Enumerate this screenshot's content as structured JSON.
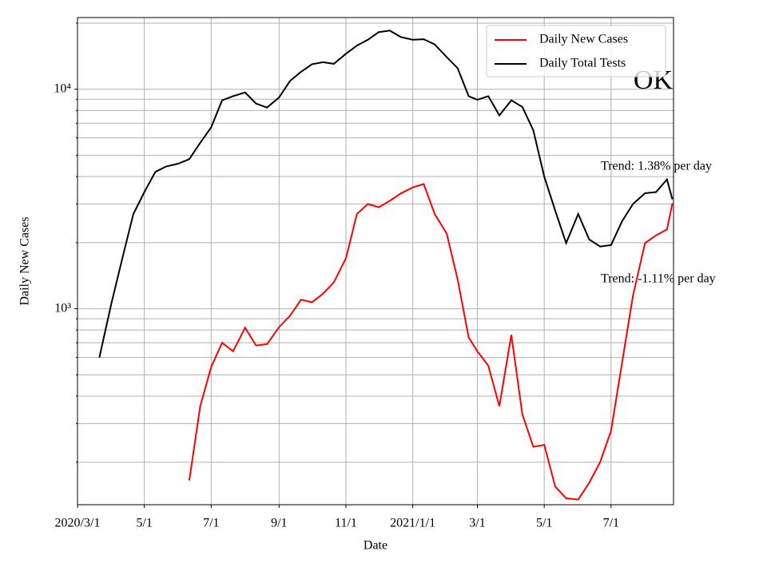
{
  "chart_data": {
    "type": "line",
    "xlabel": "Date",
    "ylabel": "Daily New Cases",
    "x": [
      "2020-03-01",
      "2020-03-11",
      "2020-03-21",
      "2020-04-01",
      "2020-04-11",
      "2020-04-21",
      "2020-05-01",
      "2020-05-11",
      "2020-05-21",
      "2020-06-01",
      "2020-06-11",
      "2020-06-21",
      "2020-07-01",
      "2020-07-11",
      "2020-07-21",
      "2020-08-01",
      "2020-08-11",
      "2020-08-21",
      "2020-09-01",
      "2020-09-11",
      "2020-09-21",
      "2020-10-01",
      "2020-10-11",
      "2020-10-21",
      "2020-11-01",
      "2020-11-11",
      "2020-11-21",
      "2020-12-01",
      "2020-12-11",
      "2020-12-21",
      "2021-01-01",
      "2021-01-11",
      "2021-01-21",
      "2021-02-01",
      "2021-02-11",
      "2021-02-21",
      "2021-03-01",
      "2021-03-11",
      "2021-03-21",
      "2021-04-01",
      "2021-04-11",
      "2021-04-21",
      "2021-05-01",
      "2021-05-11",
      "2021-05-21",
      "2021-06-01",
      "2021-06-11",
      "2021-06-21",
      "2021-07-01",
      "2021-07-11",
      "2021-07-21",
      "2021-08-01",
      "2021-08-11",
      "2021-08-21",
      "2021-08-26"
    ],
    "series": [
      {
        "name": "Daily New Cases",
        "color": "#ff0000",
        "values": [
          null,
          null,
          null,
          null,
          null,
          null,
          null,
          null,
          null,
          null,
          165,
          360,
          543,
          700,
          640,
          820,
          680,
          690,
          825,
          930,
          1100,
          1070,
          1170,
          1320,
          1700,
          2700,
          3000,
          2900,
          3100,
          3350,
          3570,
          3700,
          2700,
          2200,
          1360,
          740,
          640,
          550,
          360,
          760,
          330,
          235,
          240,
          155,
          137,
          135,
          161,
          200,
          278,
          565,
          1150,
          1990,
          2160,
          2300,
          3020
        ]
      },
      {
        "name": "Daily Total Tests",
        "color": "#000000",
        "values": [
          null,
          null,
          600,
          1060,
          1700,
          2700,
          3400,
          4200,
          4450,
          4580,
          4800,
          5700,
          6700,
          8900,
          9300,
          9660,
          8600,
          8250,
          9170,
          10900,
          12000,
          13000,
          13270,
          13050,
          14500,
          15800,
          16800,
          18200,
          18500,
          17300,
          16800,
          16900,
          16000,
          14000,
          12470,
          9300,
          8950,
          9300,
          7600,
          8900,
          8300,
          6500,
          4000,
          2800,
          1990,
          2700,
          2070,
          1920,
          1950,
          2500,
          3000,
          3360,
          3400,
          3880,
          3150
        ]
      }
    ],
    "xlim": [
      "2020-03-01",
      "2021-08-27"
    ],
    "xticks": [
      {
        "value": "2020-03-01",
        "label": "2020/3/1"
      },
      {
        "value": "2020-05-01",
        "label": "5/1"
      },
      {
        "value": "2020-07-01",
        "label": "7/1"
      },
      {
        "value": "2020-09-01",
        "label": "9/1"
      },
      {
        "value": "2020-11-01",
        "label": "11/1"
      },
      {
        "value": "2021-01-01",
        "label": "2021/1/1"
      },
      {
        "value": "2021-03-01",
        "label": "3/1"
      },
      {
        "value": "2021-05-01",
        "label": "5/1"
      },
      {
        "value": "2021-07-01",
        "label": "7/1"
      }
    ],
    "ylim": [
      128,
      21200
    ],
    "yscale": "log",
    "yticks": [
      {
        "value": 1000,
        "label": "10³"
      },
      {
        "value": 10000,
        "label": "10⁴"
      }
    ],
    "yminorticks": [
      200,
      300,
      400,
      500,
      600,
      700,
      800,
      900,
      2000,
      3000,
      4000,
      5000,
      6000,
      7000,
      8000,
      9000,
      20000
    ],
    "grid": true,
    "legend": "upper right",
    "annotations": [
      "OK",
      "Trend: 1.38% per day",
      "Trend: -1.11% per day"
    ]
  }
}
